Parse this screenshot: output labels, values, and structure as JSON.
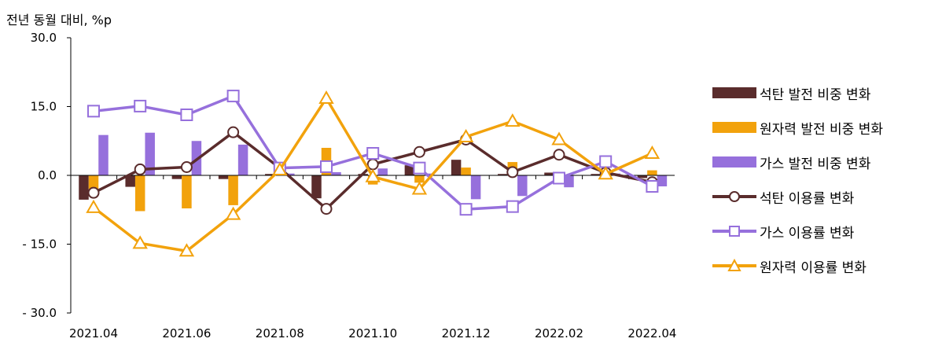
{
  "chart_data": {
    "type": "bar+line",
    "ylabel": "전년 동월 대비, %p",
    "ylim": [
      -30,
      30
    ],
    "yticks": [
      30,
      15,
      0,
      -15,
      -30
    ],
    "ytick_labels": [
      "30.0",
      "15.0",
      "0.0",
      "- 15.0",
      "- 30.0"
    ],
    "categories": [
      "2021.04",
      "2021.05",
      "2021.06",
      "2021.07",
      "2021.08",
      "2021.09",
      "2021.10",
      "2021.11",
      "2021.12",
      "2022.01",
      "2022.02",
      "2022.03",
      "2022.04"
    ],
    "xtick_labels": [
      "2021.04",
      "",
      "2021.06",
      "",
      "2021.08",
      "",
      "2021.10",
      "",
      "2021.12",
      "",
      "2022.02",
      "",
      "2022.04"
    ],
    "bar_series": [
      {
        "name": "석탄 발전 비중 변화",
        "color": "#5a2c2c",
        "values": [
          -5.3,
          -2.5,
          -0.8,
          -0.8,
          0.3,
          -5.0,
          0.3,
          2.2,
          3.4,
          0.3,
          0.6,
          0.3,
          -0.6
        ]
      },
      {
        "name": "원자력 발전 비중 변화",
        "color": "#f2a20c",
        "values": [
          -3.0,
          -7.8,
          -7.2,
          -6.5,
          0.3,
          6.0,
          -2.0,
          -1.6,
          1.7,
          2.9,
          -0.8,
          0.3,
          1.1
        ]
      },
      {
        "name": "가스 발전 비중 변화",
        "color": "#9670dc",
        "values": [
          8.8,
          9.3,
          7.5,
          6.7,
          0.4,
          0.7,
          1.5,
          0.4,
          -5.2,
          -4.5,
          -2.6,
          0.4,
          -2.4
        ]
      }
    ],
    "line_series": [
      {
        "name": "석탄 이용률 변화",
        "color": "#5a2c2c",
        "marker": "circle",
        "values": [
          -3.8,
          1.3,
          1.8,
          9.4,
          1.6,
          -7.3,
          2.4,
          5.1,
          7.8,
          0.7,
          4.5,
          0.6,
          -1.5
        ]
      },
      {
        "name": "가스 이용률 변화",
        "color": "#9670dc",
        "marker": "square",
        "values": [
          14.0,
          15.1,
          13.2,
          17.3,
          1.6,
          1.9,
          4.8,
          1.6,
          -7.4,
          -6.8,
          -0.6,
          3.0,
          -2.4
        ]
      },
      {
        "name": "원자력 이용률 변화",
        "color": "#f2a20c",
        "marker": "triangle",
        "values": [
          -7.0,
          -14.8,
          -16.5,
          -8.5,
          1.2,
          16.8,
          -0.3,
          -3.0,
          8.4,
          11.8,
          7.8,
          0.3,
          4.8
        ]
      }
    ],
    "legend_position": "right",
    "grid": false
  }
}
